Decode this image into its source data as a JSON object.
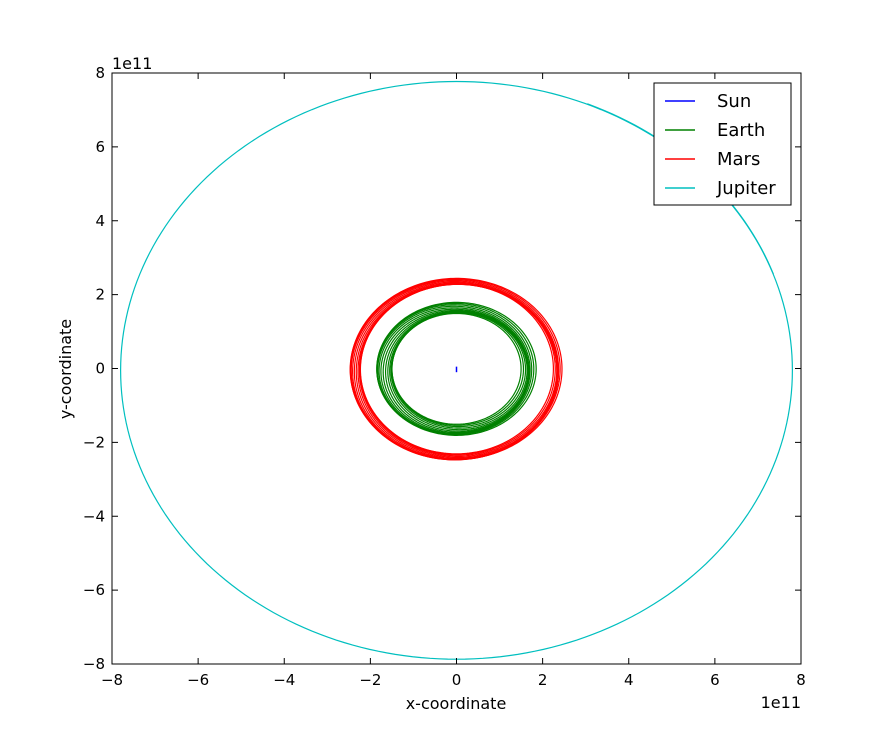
{
  "chart_data": {
    "type": "line",
    "title": "",
    "xlabel": "x-coordinate",
    "ylabel": "y-coordinate",
    "x_offset_label": "1e11",
    "y_offset_label": "1e11",
    "xlim": [
      -8,
      8
    ],
    "ylim": [
      -8,
      8
    ],
    "xticks": [
      -8,
      -6,
      -4,
      -2,
      0,
      2,
      4,
      6,
      8
    ],
    "yticks": [
      -8,
      -6,
      -4,
      -2,
      0,
      2,
      4,
      6,
      8
    ],
    "grid": false,
    "legend_position": "top-right",
    "series": [
      {
        "name": "Sun",
        "color": "#0000ff",
        "shape": "small vertical wobble near origin",
        "x": [
          0.0,
          0.0,
          0.0
        ],
        "y": [
          -0.1,
          0.0,
          0.05
        ]
      },
      {
        "name": "Earth",
        "color": "#008000",
        "shape": "precessing orbit band",
        "center": [
          0.0,
          -0.05
        ],
        "radius_x": [
          1.5,
          1.85
        ],
        "radius_y": [
          1.5,
          1.8
        ]
      },
      {
        "name": "Mars",
        "color": "#ff0000",
        "shape": "precessing orbit band",
        "center": [
          0.0,
          -0.05
        ],
        "radius_x": [
          2.25,
          2.45
        ],
        "radius_y": [
          2.3,
          2.45
        ]
      },
      {
        "name": "Jupiter",
        "color": "#00bfbf",
        "shape": "single elliptical orbit",
        "center": [
          0.0,
          -0.05
        ],
        "radius_x": 7.8,
        "radius_y": 7.82
      }
    ]
  }
}
